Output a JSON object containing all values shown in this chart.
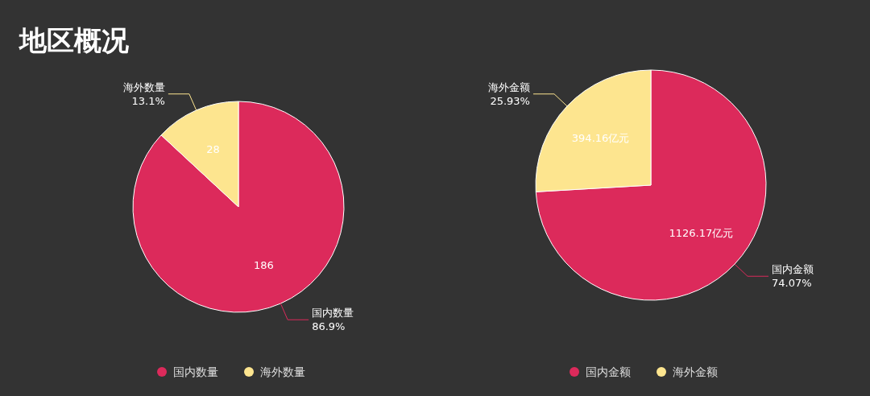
{
  "chart_data": [
    {
      "type": "pie",
      "title": "地区概况",
      "categories": [
        "国内数量",
        "海外数量"
      ],
      "values": [
        186,
        28
      ],
      "colors": [
        "#dc2a5b",
        "#fde58f"
      ],
      "value_labels": [
        "186",
        "28"
      ],
      "legend": "bottom",
      "annotations": [
        {
          "text": "86.9%",
          "x": "国内数量"
        },
        {
          "text": "13.1%",
          "x": "海外数量"
        }
      ]
    },
    {
      "type": "pie",
      "categories": [
        "国内金额",
        "海外金额"
      ],
      "values": [
        1126.17,
        394.16
      ],
      "colors": [
        "#dc2a5b",
        "#fde58f"
      ],
      "value_labels": [
        "1126.17亿元",
        "394.16亿元"
      ],
      "legend": "bottom",
      "annotations": [
        {
          "text": "74.07%",
          "x": "国内金额"
        },
        {
          "text": "25.93%",
          "x": "海外金额"
        }
      ]
    }
  ]
}
